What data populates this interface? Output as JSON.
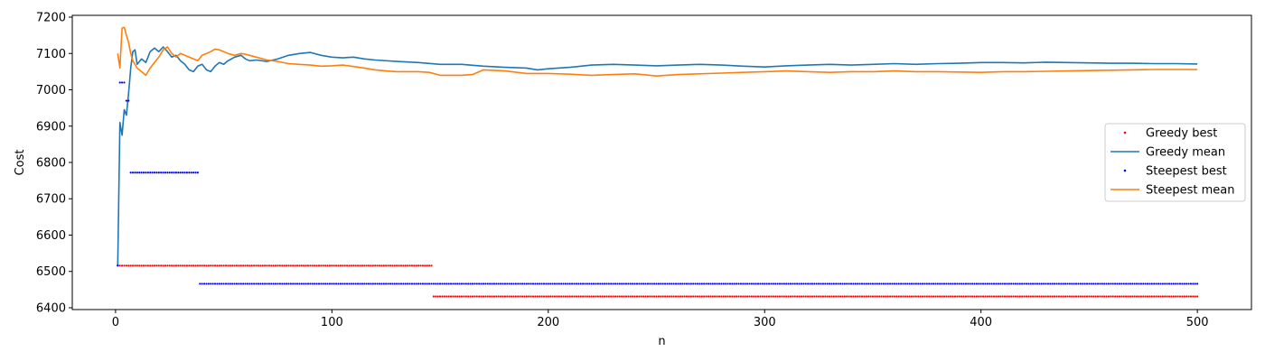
{
  "chart_data": {
    "type": "line",
    "title": "",
    "xlabel": "n",
    "ylabel": "Cost",
    "xlim": [
      -20,
      525
    ],
    "ylim": [
      6395,
      7205
    ],
    "xticks": [
      0,
      100,
      200,
      300,
      400,
      500
    ],
    "yticks": [
      6400,
      6500,
      6600,
      6700,
      6800,
      6900,
      7000,
      7100,
      7200
    ],
    "grid": false,
    "legend_position": "center-right",
    "series": [
      {
        "name": "Greedy best",
        "kind": "dots",
        "color": "#ff0000",
        "steps": [
          {
            "from": 1,
            "to": 146,
            "value": 6516
          },
          {
            "from": 147,
            "to": 500,
            "value": 6431
          }
        ]
      },
      {
        "name": "Greedy mean",
        "kind": "line",
        "color": "#1f77b4",
        "points": [
          [
            1,
            6516
          ],
          [
            2,
            6910
          ],
          [
            3,
            6875
          ],
          [
            4,
            6945
          ],
          [
            5,
            6930
          ],
          [
            6,
            6990
          ],
          [
            7,
            7060
          ],
          [
            8,
            7105
          ],
          [
            9,
            7110
          ],
          [
            10,
            7070
          ],
          [
            12,
            7085
          ],
          [
            14,
            7075
          ],
          [
            16,
            7105
          ],
          [
            18,
            7115
          ],
          [
            20,
            7105
          ],
          [
            22,
            7118
          ],
          [
            24,
            7105
          ],
          [
            26,
            7090
          ],
          [
            28,
            7095
          ],
          [
            30,
            7080
          ],
          [
            32,
            7070
          ],
          [
            34,
            7055
          ],
          [
            36,
            7050
          ],
          [
            38,
            7065
          ],
          [
            40,
            7070
          ],
          [
            42,
            7055
          ],
          [
            44,
            7050
          ],
          [
            46,
            7065
          ],
          [
            48,
            7075
          ],
          [
            50,
            7070
          ],
          [
            52,
            7080
          ],
          [
            55,
            7090
          ],
          [
            58,
            7095
          ],
          [
            60,
            7085
          ],
          [
            62,
            7080
          ],
          [
            65,
            7082
          ],
          [
            70,
            7078
          ],
          [
            75,
            7085
          ],
          [
            80,
            7095
          ],
          [
            85,
            7100
          ],
          [
            90,
            7103
          ],
          [
            95,
            7095
          ],
          [
            100,
            7090
          ],
          [
            105,
            7088
          ],
          [
            110,
            7090
          ],
          [
            115,
            7085
          ],
          [
            120,
            7082
          ],
          [
            130,
            7078
          ],
          [
            140,
            7075
          ],
          [
            150,
            7070
          ],
          [
            160,
            7070
          ],
          [
            170,
            7065
          ],
          [
            180,
            7062
          ],
          [
            190,
            7060
          ],
          [
            195,
            7055
          ],
          [
            200,
            7058
          ],
          [
            210,
            7062
          ],
          [
            220,
            7068
          ],
          [
            230,
            7070
          ],
          [
            240,
            7068
          ],
          [
            250,
            7066
          ],
          [
            260,
            7068
          ],
          [
            270,
            7070
          ],
          [
            280,
            7068
          ],
          [
            290,
            7065
          ],
          [
            300,
            7063
          ],
          [
            310,
            7066
          ],
          [
            320,
            7068
          ],
          [
            330,
            7070
          ],
          [
            340,
            7068
          ],
          [
            350,
            7070
          ],
          [
            360,
            7072
          ],
          [
            370,
            7070
          ],
          [
            380,
            7072
          ],
          [
            390,
            7073
          ],
          [
            400,
            7075
          ],
          [
            410,
            7075
          ],
          [
            420,
            7074
          ],
          [
            430,
            7076
          ],
          [
            440,
            7075
          ],
          [
            450,
            7074
          ],
          [
            460,
            7073
          ],
          [
            470,
            7073
          ],
          [
            480,
            7072
          ],
          [
            490,
            7072
          ],
          [
            500,
            7071
          ]
        ]
      },
      {
        "name": "Steepest best",
        "kind": "dots",
        "color": "#0000ff",
        "steps": [
          {
            "from": 1,
            "to": 1,
            "value": 6516
          },
          {
            "from": 2,
            "to": 4,
            "value": 7020
          },
          {
            "from": 5,
            "to": 6,
            "value": 6970
          },
          {
            "from": 7,
            "to": 38,
            "value": 6772
          },
          {
            "from": 39,
            "to": 500,
            "value": 6466
          }
        ]
      },
      {
        "name": "Steepest mean",
        "kind": "line",
        "color": "#ff7f0e",
        "points": [
          [
            1,
            7100
          ],
          [
            2,
            7060
          ],
          [
            3,
            7170
          ],
          [
            4,
            7172
          ],
          [
            5,
            7150
          ],
          [
            6,
            7130
          ],
          [
            7,
            7100
          ],
          [
            8,
            7080
          ],
          [
            10,
            7060
          ],
          [
            12,
            7050
          ],
          [
            14,
            7040
          ],
          [
            16,
            7060
          ],
          [
            18,
            7075
          ],
          [
            20,
            7090
          ],
          [
            22,
            7110
          ],
          [
            24,
            7118
          ],
          [
            26,
            7100
          ],
          [
            28,
            7090
          ],
          [
            30,
            7100
          ],
          [
            32,
            7095
          ],
          [
            34,
            7090
          ],
          [
            36,
            7085
          ],
          [
            38,
            7080
          ],
          [
            40,
            7095
          ],
          [
            42,
            7100
          ],
          [
            44,
            7105
          ],
          [
            46,
            7112
          ],
          [
            48,
            7110
          ],
          [
            50,
            7105
          ],
          [
            52,
            7100
          ],
          [
            55,
            7095
          ],
          [
            58,
            7100
          ],
          [
            60,
            7098
          ],
          [
            62,
            7095
          ],
          [
            65,
            7090
          ],
          [
            70,
            7082
          ],
          [
            75,
            7078
          ],
          [
            80,
            7072
          ],
          [
            85,
            7070
          ],
          [
            90,
            7068
          ],
          [
            95,
            7065
          ],
          [
            100,
            7066
          ],
          [
            105,
            7068
          ],
          [
            110,
            7064
          ],
          [
            115,
            7060
          ],
          [
            120,
            7055
          ],
          [
            125,
            7052
          ],
          [
            130,
            7050
          ],
          [
            140,
            7050
          ],
          [
            145,
            7048
          ],
          [
            150,
            7040
          ],
          [
            160,
            7040
          ],
          [
            165,
            7042
          ],
          [
            170,
            7055
          ],
          [
            180,
            7052
          ],
          [
            190,
            7045
          ],
          [
            200,
            7045
          ],
          [
            210,
            7043
          ],
          [
            220,
            7040
          ],
          [
            230,
            7042
          ],
          [
            240,
            7044
          ],
          [
            250,
            7038
          ],
          [
            260,
            7042
          ],
          [
            270,
            7044
          ],
          [
            280,
            7046
          ],
          [
            290,
            7048
          ],
          [
            300,
            7050
          ],
          [
            310,
            7052
          ],
          [
            320,
            7050
          ],
          [
            330,
            7048
          ],
          [
            340,
            7050
          ],
          [
            350,
            7050
          ],
          [
            360,
            7052
          ],
          [
            370,
            7050
          ],
          [
            380,
            7050
          ],
          [
            390,
            7049
          ],
          [
            400,
            7048
          ],
          [
            410,
            7050
          ],
          [
            420,
            7050
          ],
          [
            430,
            7051
          ],
          [
            440,
            7052
          ],
          [
            450,
            7053
          ],
          [
            460,
            7054
          ],
          [
            470,
            7055
          ],
          [
            480,
            7056
          ],
          [
            490,
            7056
          ],
          [
            500,
            7056
          ]
        ]
      }
    ]
  }
}
